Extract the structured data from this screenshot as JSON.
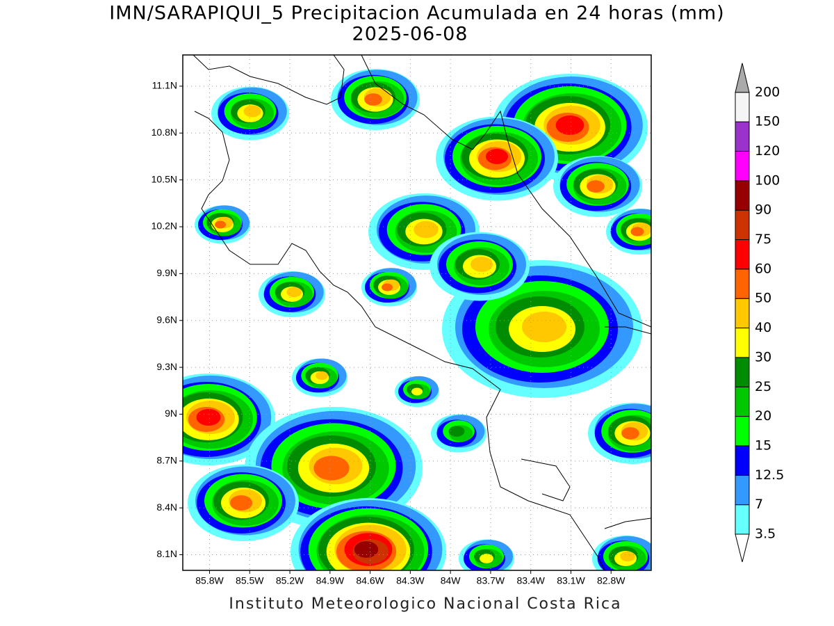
{
  "title": "IMN/SARAPIQUI_5 Precipitacion Acumulada en 24 horas (mm)",
  "subtitle": "2025-06-08",
  "map": {
    "latlim": [
      8.0,
      11.3
    ],
    "lonlim": [
      -86.0,
      -82.5
    ],
    "grid": true,
    "lat_ticks": [
      {
        "value": 11.1,
        "label": "11.1N"
      },
      {
        "value": 10.8,
        "label": "10.8N"
      },
      {
        "value": 10.5,
        "label": "10.5N"
      },
      {
        "value": 10.2,
        "label": "10.2N"
      },
      {
        "value": 9.9,
        "label": "9.9N"
      },
      {
        "value": 9.6,
        "label": "9.6N"
      },
      {
        "value": 9.3,
        "label": "9.3N"
      },
      {
        "value": 9.0,
        "label": "9N"
      },
      {
        "value": 8.7,
        "label": "8.7N"
      },
      {
        "value": 8.4,
        "label": "8.4N"
      },
      {
        "value": 8.1,
        "label": "8.1N"
      }
    ],
    "lon_ticks": [
      {
        "value": -85.8,
        "label": "85.8W"
      },
      {
        "value": -85.5,
        "label": "85.5W"
      },
      {
        "value": -85.2,
        "label": "85.2W"
      },
      {
        "value": -84.9,
        "label": "84.9W"
      },
      {
        "value": -84.6,
        "label": "84.6W"
      },
      {
        "value": -84.3,
        "label": "84.3W"
      },
      {
        "value": -84.0,
        "label": "84W"
      },
      {
        "value": -83.7,
        "label": "83.7W"
      },
      {
        "value": -83.4,
        "label": "83.4W"
      },
      {
        "value": -83.1,
        "label": "83.1W"
      },
      {
        "value": -82.8,
        "label": "82.8W"
      }
    ]
  },
  "colorbar": {
    "levels": [
      3.5,
      7,
      12.5,
      15,
      20,
      25,
      30,
      40,
      50,
      60,
      75,
      90,
      100,
      120,
      150,
      200
    ],
    "colors": [
      "#ffffff",
      "#66ffff",
      "#3399ff",
      "#0000ff",
      "#00ff00",
      "#00c800",
      "#008c00",
      "#ffff00",
      "#ffc800",
      "#ff6400",
      "#ff0000",
      "#cc3300",
      "#960000",
      "#ff00ff",
      "#9933cc",
      "#f5f5f5",
      "#aaaaaa"
    ]
  },
  "footer": "Instituto Meteorologico Nacional Costa Rica"
}
